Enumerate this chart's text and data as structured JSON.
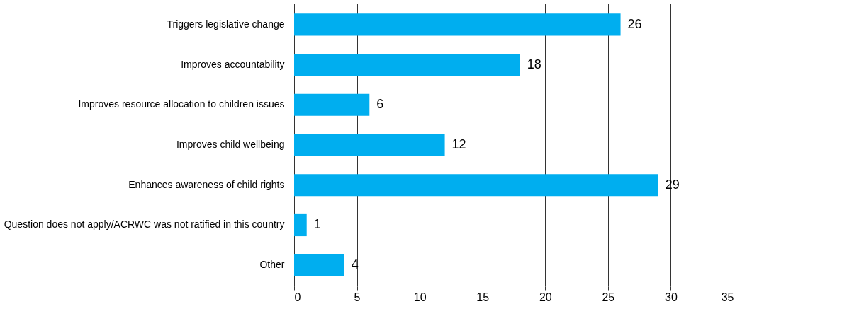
{
  "chart_data": {
    "type": "bar",
    "orientation": "horizontal",
    "categories": [
      "Triggers legislative change",
      "Improves accountability",
      "Improves resource allocation to children issues",
      "Improves child wellbeing",
      "Enhances awareness of child rights",
      "Question does not apply/ACRWC was not ratified in this country",
      "Other"
    ],
    "values": [
      26,
      18,
      6,
      12,
      29,
      1,
      4
    ],
    "color": "#00aeef",
    "xlim": [
      0,
      35
    ],
    "xticks": [
      0,
      5,
      10,
      15,
      20,
      25,
      30,
      35
    ],
    "grid": "x",
    "data_labels": true
  }
}
